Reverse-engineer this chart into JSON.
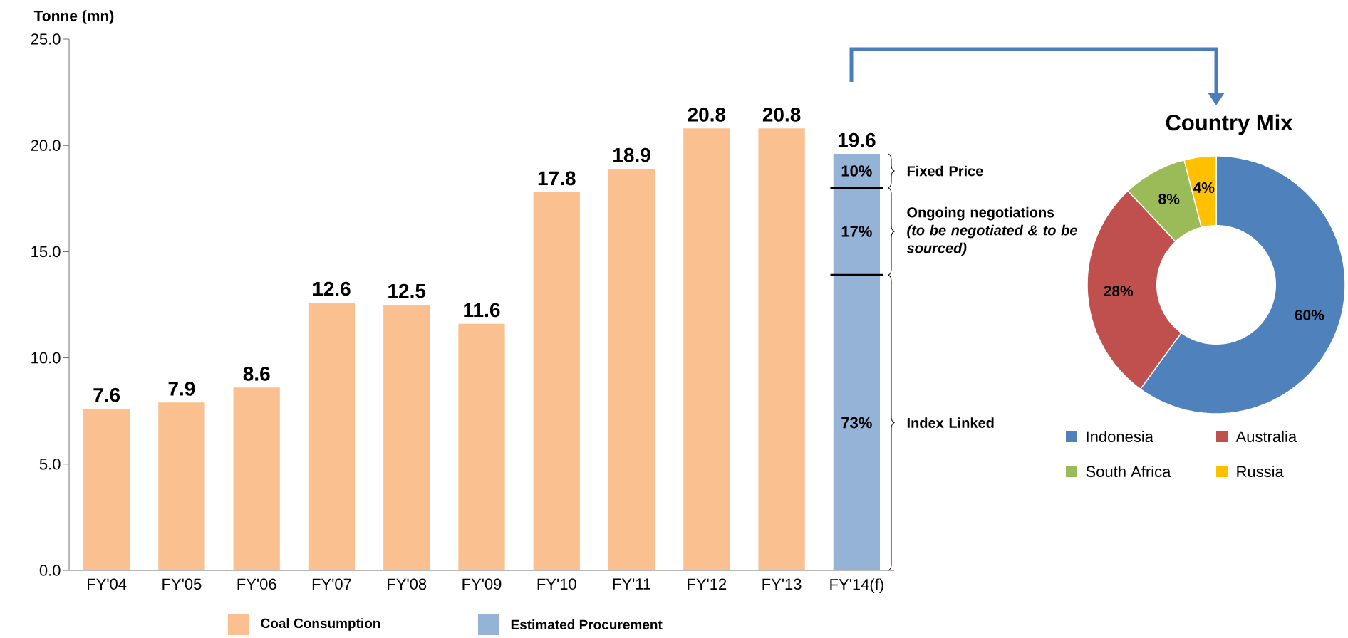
{
  "chart_data": [
    {
      "type": "bar",
      "ylabel": "Tonne (mn)",
      "categories": [
        "FY'04",
        "FY'05",
        "FY'06",
        "FY'07",
        "FY'08",
        "FY'09",
        "FY'10",
        "FY'11",
        "FY'12",
        "FY'13",
        "FY'14(f)"
      ],
      "series": [
        {
          "name": "Coal Consumption",
          "color": "#fac090",
          "values": [
            7.6,
            7.9,
            8.6,
            12.6,
            12.5,
            11.6,
            17.8,
            18.9,
            20.8,
            20.8,
            null
          ]
        },
        {
          "name": "Estimated Procurement",
          "color": "#95b3d7",
          "values": [
            null,
            null,
            null,
            null,
            null,
            null,
            null,
            null,
            null,
            null,
            13.9
          ]
        },
        {
          "color": "#95b3d7",
          "values": [
            null,
            null,
            null,
            null,
            null,
            null,
            null,
            null,
            null,
            null,
            4.1
          ]
        },
        {
          "color": "#95b3d7",
          "values": [
            null,
            null,
            null,
            null,
            null,
            null,
            null,
            null,
            null,
            null,
            1.6
          ]
        }
      ],
      "stacked": true,
      "totals": [
        "7.6",
        "7.9",
        "8.6",
        "12.6",
        "12.5",
        "11.6",
        "17.8",
        "18.9",
        "20.8",
        "20.8",
        "19.6"
      ],
      "ylim": [
        0,
        25
      ],
      "yticks": [
        {
          "value": 0,
          "label": "0.0"
        },
        {
          "value": 5,
          "label": "5.0"
        },
        {
          "value": 10,
          "label": "10.0"
        },
        {
          "value": 15,
          "label": "15.0"
        },
        {
          "value": 20,
          "label": "20.0"
        },
        {
          "value": 25,
          "label": "25.0"
        }
      ],
      "legend": "bottom",
      "annotations": [
        "10%",
        "17%",
        "73%",
        "Fixed Price",
        "Ongoing negotiations *(to be negotiated & to be sourced)*",
        "Index Linked"
      ]
    },
    {
      "type": "donut",
      "title": "Country Mix",
      "categories": [
        "Indonesia",
        "Australia",
        "South Africa",
        "Russia"
      ],
      "values": [
        60,
        28,
        8,
        4
      ],
      "colors": [
        "#4f81bd",
        "#c0504d",
        "#9bbb59",
        "#ffc000"
      ],
      "value_labels": [
        "60%",
        "28%",
        "8%",
        "4%"
      ],
      "legend": "bottom"
    }
  ]
}
